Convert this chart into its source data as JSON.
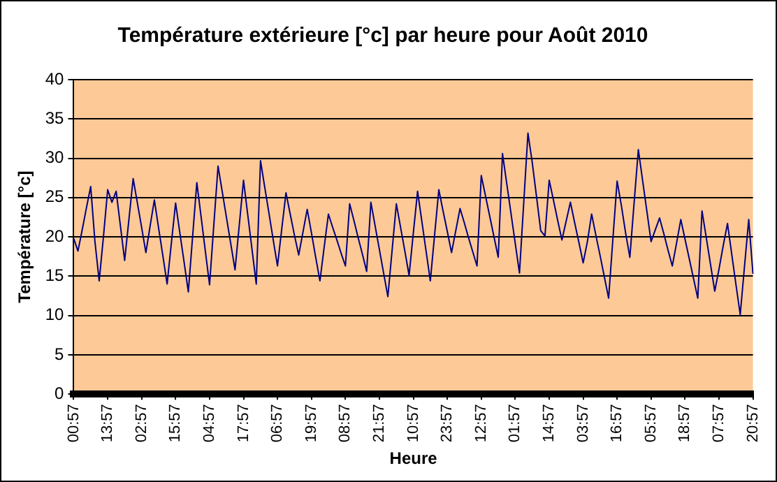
{
  "chart_data": {
    "type": "line",
    "title": "Température extérieure [°c] par heure pour Août 2010",
    "xlabel": "Heure",
    "ylabel": "Température [°c]",
    "ylim": [
      0,
      40
    ],
    "yticks": [
      0,
      5,
      10,
      15,
      20,
      25,
      30,
      35,
      40
    ],
    "categories": [
      "00:57",
      null,
      null,
      null,
      null,
      null,
      null,
      null,
      "13:57",
      null,
      null,
      null,
      null,
      null,
      null,
      null,
      "02:57",
      null,
      null,
      null,
      null,
      null,
      null,
      null,
      "15:57",
      null,
      null,
      null,
      null,
      null,
      null,
      null,
      "04:57",
      null,
      null,
      null,
      null,
      null,
      null,
      null,
      "17:57",
      null,
      null,
      null,
      null,
      null,
      null,
      null,
      "06:57",
      null,
      null,
      null,
      null,
      null,
      null,
      null,
      "19:57",
      null,
      null,
      null,
      null,
      null,
      null,
      null,
      "08:57",
      null,
      null,
      null,
      null,
      null,
      null,
      null,
      "21:57",
      null,
      null,
      null,
      null,
      null,
      null,
      null,
      "10:57",
      null,
      null,
      null,
      null,
      null,
      null,
      null,
      "23:57",
      null,
      null,
      null,
      null,
      null,
      null,
      null,
      "12:57",
      null,
      null,
      null,
      null,
      null,
      null,
      null,
      "01:57",
      null,
      null,
      null,
      null,
      null,
      null,
      null,
      "14:57",
      null,
      null,
      null,
      null,
      null,
      null,
      null,
      "03:57",
      null,
      null,
      null,
      null,
      null,
      null,
      null,
      "16:57",
      null,
      null,
      null,
      null,
      null,
      null,
      null,
      "05:57",
      null,
      null,
      null,
      null,
      null,
      null,
      null,
      "18:57",
      null,
      null,
      null,
      null,
      null,
      null,
      null,
      "07:57",
      null,
      null,
      null,
      null,
      null,
      null,
      null,
      "20:57"
    ],
    "grid": "y",
    "legend": false,
    "marker": "none",
    "line_style": "solid",
    "series": [
      {
        "color": "#000080",
        "values": [
          19.8,
          18.2,
          20.9,
          23.7,
          26.4,
          19.4,
          14.4,
          20,
          26,
          24.4,
          25.8,
          21.4,
          17,
          22.2,
          27.4,
          24.3,
          21.2,
          18,
          21.4,
          24.7,
          21.1,
          17.6,
          14,
          19.2,
          24.3,
          20.5,
          16.8,
          13,
          20,
          26.9,
          22.6,
          18.2,
          13.9,
          21.5,
          29,
          25.7,
          22.4,
          19.1,
          15.8,
          21.5,
          27.2,
          22.8,
          18.4,
          14,
          29.7,
          26.3,
          23,
          19.6,
          16.3,
          21,
          25.6,
          22.9,
          20.2,
          17.7,
          20.6,
          23.5,
          20.5,
          17.4,
          14.4,
          18.7,
          22.9,
          21.2,
          19.6,
          17.9,
          16.3,
          24.2,
          22.1,
          19.9,
          17.8,
          15.6,
          24.4,
          21.4,
          18.4,
          15.4,
          12.4,
          18.3,
          24.2,
          21.2,
          18.2,
          15.1,
          20.5,
          25.8,
          22,
          18.2,
          14.4,
          20.2,
          26,
          23.3,
          20.7,
          18,
          20.8,
          23.6,
          21.8,
          19.9,
          18.1,
          16.3,
          27.8,
          25.2,
          22.6,
          20,
          17.4,
          30.6,
          26.8,
          23,
          19.2,
          15.4,
          24.3,
          33.2,
          29.5,
          25.2,
          20.8,
          20.1,
          27.2,
          24.7,
          22.1,
          19.6,
          22,
          24.4,
          21.8,
          19.3,
          16.7,
          19.4,
          22.9,
          20.2,
          17.6,
          14.9,
          12.2,
          19.7,
          27.1,
          24,
          20.5,
          17.4,
          24.3,
          31.1,
          27.2,
          23.3,
          19.4,
          20.9,
          22.4,
          20.4,
          18.3,
          16.3,
          19.2,
          22.2,
          19.7,
          17.2,
          14.7,
          12.2,
          23.3,
          19.9,
          16.5,
          13.1,
          15.9,
          18.9,
          21.7,
          17.8,
          13.9,
          10.1,
          16.2,
          22.2,
          15.3
        ]
      }
    ]
  }
}
